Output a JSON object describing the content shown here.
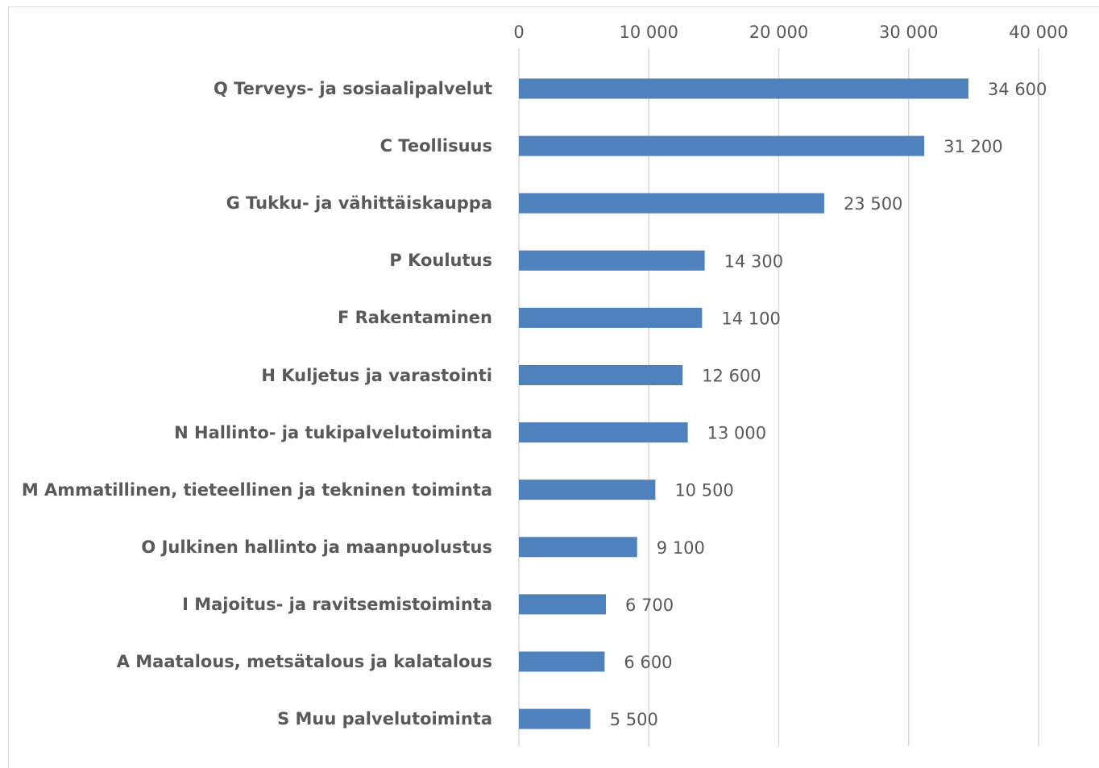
{
  "chart_data": {
    "type": "bar",
    "orientation": "horizontal",
    "categories": [
      "Q Terveys- ja sosiaalipalvelut",
      "C Teollisuus",
      "G Tukku- ja vähittäiskauppa",
      "P Koulutus",
      "F Rakentaminen",
      "H Kuljetus ja varastointi",
      "N Hallinto- ja tukipalvelutoiminta",
      "M Ammatillinen, tieteellinen ja tekninen toiminta",
      "O Julkinen hallinto ja maanpuolustus",
      "I Majoitus- ja ravitsemistoiminta",
      "A Maatalous, metsätalous ja kalatalous",
      "S Muu palvelutoiminta"
    ],
    "values": [
      34600,
      31200,
      23500,
      14300,
      14100,
      12600,
      13000,
      10500,
      9100,
      6700,
      6600,
      5500
    ],
    "value_labels": [
      "34 600",
      "31 200",
      "23 500",
      "14 300",
      "14 100",
      "12 600",
      "13 000",
      "10 500",
      "9 100",
      "6 700",
      "6 600",
      "5 500"
    ],
    "color": "#4f81bd",
    "xlim": [
      0,
      40000
    ],
    "xticks": [
      0,
      {
        "value": 10000,
        "label": "10 000"
      },
      {
        "value": 20000,
        "label": "20 000"
      },
      {
        "value": 30000,
        "label": "30 000"
      },
      {
        "value": 40000,
        "label": "40 000"
      }
    ],
    "grid": true
  }
}
